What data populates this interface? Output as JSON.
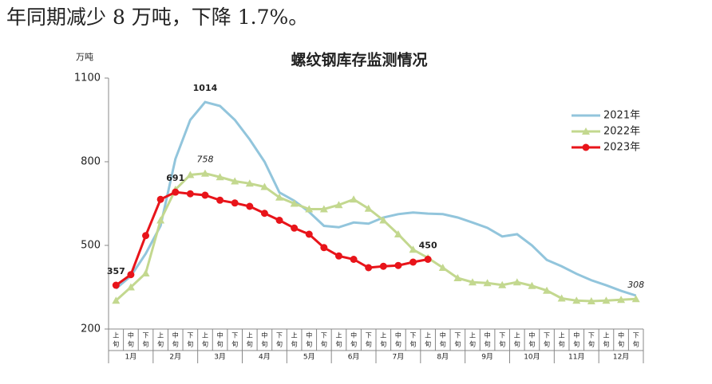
{
  "header_text": "年同期减少 8 万吨，下降 1.7%。",
  "chart_data": {
    "type": "line",
    "title": "螺纹钢库存监测情况",
    "y_unit": "万吨",
    "categories": [
      "上旬",
      "中旬",
      "下旬",
      "上旬",
      "中旬",
      "下旬",
      "上旬",
      "中旬",
      "下旬",
      "上旬",
      "中旬",
      "下旬",
      "上旬",
      "中旬",
      "下旬",
      "上旬",
      "中旬",
      "下旬",
      "上旬",
      "中旬",
      "下旬",
      "上旬",
      "中旬",
      "下旬",
      "上旬",
      "中旬",
      "下旬",
      "上旬",
      "中旬",
      "下旬",
      "上旬",
      "中旬",
      "下旬",
      "上旬",
      "中旬",
      "下旬"
    ],
    "groups": [
      "1月",
      "2月",
      "3月",
      "4月",
      "5月",
      "6月",
      "7月",
      "8月",
      "9月",
      "10月",
      "11月",
      "12月"
    ],
    "ylim": [
      200,
      1100
    ],
    "yticks": [
      200,
      500,
      800,
      1100
    ],
    "legend": "upper right",
    "series": [
      {
        "name": "2021年",
        "color": "#92c5dc",
        "marker": "none",
        "data_labels": [
          6
        ],
        "values": [
          345,
          390,
          470,
          570,
          810,
          950,
          1014,
          1000,
          950,
          880,
          800,
          690,
          660,
          620,
          570,
          565,
          582,
          578,
          600,
          612,
          618,
          614,
          612,
          600,
          582,
          563,
          532,
          540,
          500,
          448,
          425,
          398,
          375,
          357,
          337,
          320
        ]
      },
      {
        "name": "2022年",
        "color": "#c3d88f",
        "marker": "triangle",
        "data_labels": [
          6,
          35
        ],
        "values": [
          302,
          350,
          400,
          590,
          700,
          753,
          758,
          745,
          730,
          722,
          710,
          672,
          650,
          630,
          630,
          645,
          665,
          632,
          590,
          540,
          485,
          455,
          420,
          383,
          368,
          365,
          358,
          368,
          355,
          338,
          310,
          302,
          300,
          302,
          305,
          308
        ]
      },
      {
        "name": "2023年",
        "color": "#e8141a",
        "marker": "circle",
        "data_labels": [
          0,
          4,
          21
        ],
        "values": [
          357,
          395,
          535,
          665,
          691,
          685,
          680,
          662,
          652,
          640,
          615,
          590,
          562,
          540,
          492,
          462,
          450,
          420,
          425,
          428,
          440,
          450,
          null,
          null,
          null,
          null,
          null,
          null,
          null,
          null,
          null,
          null,
          null,
          null,
          null,
          null
        ]
      }
    ]
  }
}
